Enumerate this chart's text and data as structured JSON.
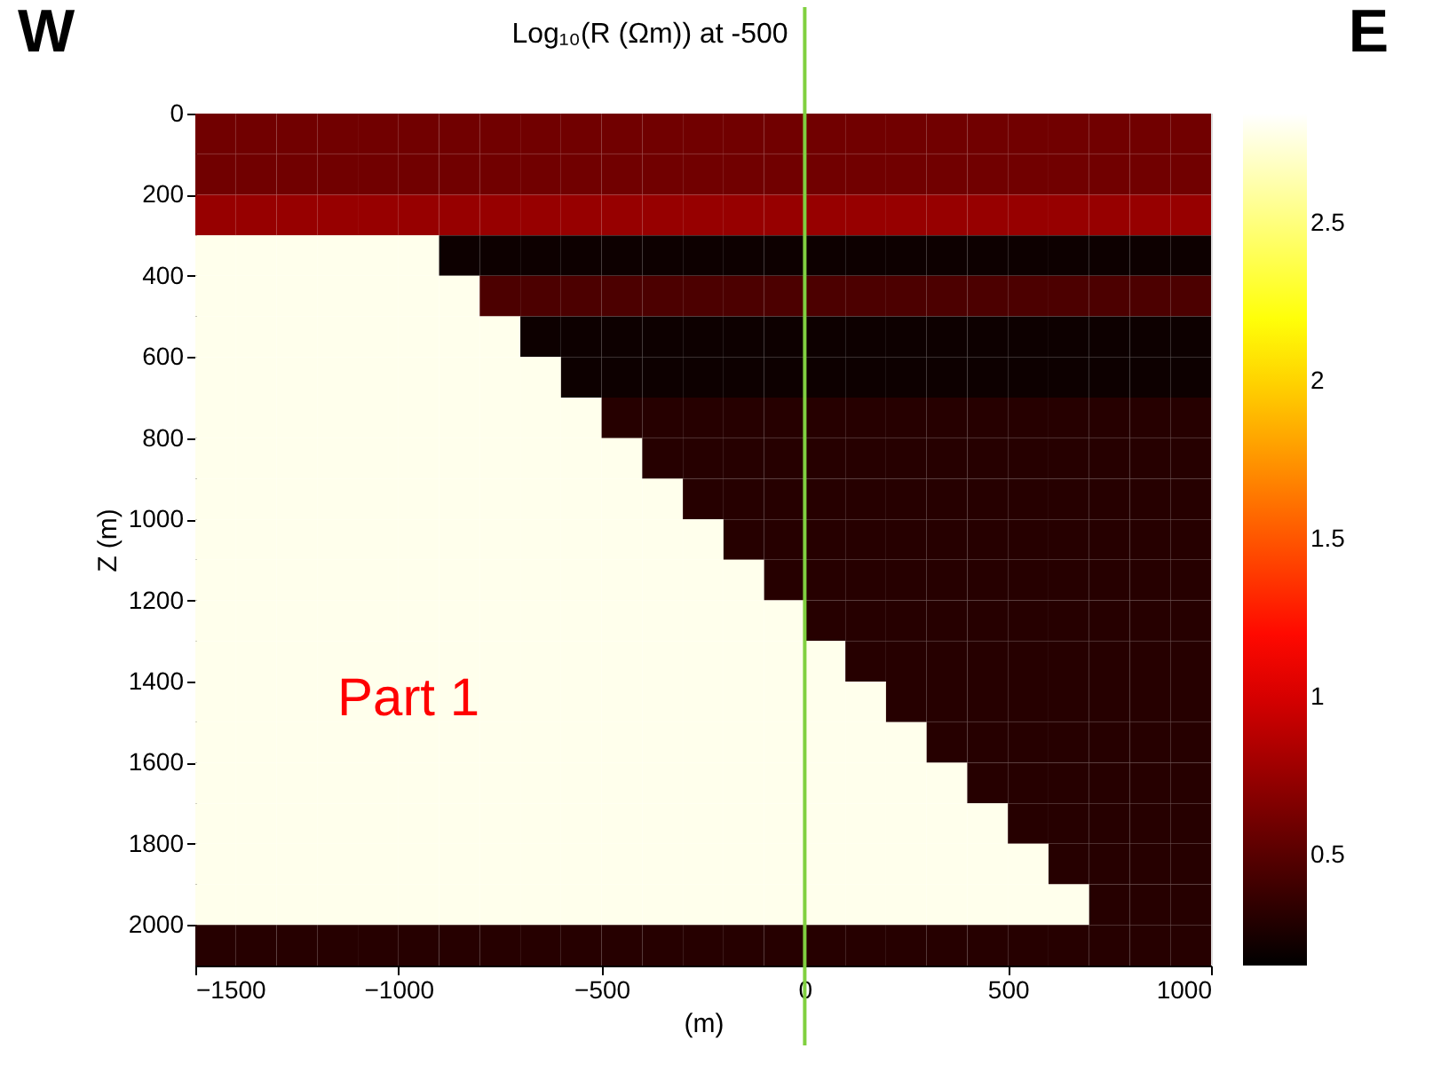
{
  "chart_data": {
    "type": "heatmap",
    "title": "Log₁₀(R (Ωm)) at    -500",
    "xlabel": "(m)",
    "ylabel": "Z (m)",
    "x": [
      -1450,
      -1350,
      -1250,
      -1150,
      -1050,
      -950,
      -850,
      -750,
      -650,
      -550,
      -450,
      -350,
      -250,
      -150,
      -50,
      50,
      150,
      250,
      350,
      450,
      550,
      650,
      750,
      850,
      950
    ],
    "y": [
      50,
      150,
      250,
      350,
      450,
      550,
      650,
      750,
      850,
      950,
      1050,
      1150,
      1250,
      1350,
      1450,
      1550,
      1650,
      1750,
      1850,
      1950,
      2050
    ],
    "cells": [
      [
        0.6,
        0.6,
        0.6,
        0.6,
        0.6,
        0.6,
        0.6,
        0.6,
        0.6,
        0.6,
        0.6,
        0.6,
        0.6,
        0.6,
        0.6,
        0.6,
        0.6,
        0.6,
        0.6,
        0.6,
        0.6,
        0.6,
        0.6,
        0.6,
        0.6
      ],
      [
        0.6,
        0.6,
        0.6,
        0.6,
        0.6,
        0.6,
        0.6,
        0.6,
        0.6,
        0.6,
        0.6,
        0.6,
        0.6,
        0.6,
        0.6,
        0.6,
        0.6,
        0.6,
        0.6,
        0.6,
        0.6,
        0.6,
        0.6,
        0.6,
        0.6
      ],
      [
        0.75,
        0.75,
        0.75,
        0.75,
        0.75,
        0.75,
        0.75,
        0.75,
        0.75,
        0.75,
        0.75,
        0.75,
        0.75,
        0.75,
        0.75,
        0.75,
        0.75,
        0.75,
        0.75,
        0.75,
        0.75,
        0.75,
        0.75,
        0.75,
        0.75
      ],
      [
        2.8,
        2.8,
        2.8,
        2.8,
        2.8,
        2.8,
        0.2,
        0.2,
        0.2,
        0.2,
        0.2,
        0.2,
        0.2,
        0.2,
        0.2,
        0.2,
        0.2,
        0.2,
        0.2,
        0.2,
        0.2,
        0.2,
        0.2,
        0.2,
        0.2
      ],
      [
        2.8,
        2.8,
        2.8,
        2.8,
        2.8,
        2.8,
        2.8,
        0.45,
        0.45,
        0.45,
        0.45,
        0.45,
        0.45,
        0.45,
        0.45,
        0.45,
        0.45,
        0.45,
        0.45,
        0.45,
        0.45,
        0.45,
        0.45,
        0.45,
        0.45
      ],
      [
        2.8,
        2.8,
        2.8,
        2.8,
        2.8,
        2.8,
        2.8,
        2.8,
        0.2,
        0.2,
        0.2,
        0.2,
        0.2,
        0.2,
        0.2,
        0.2,
        0.2,
        0.2,
        0.2,
        0.2,
        0.2,
        0.2,
        0.2,
        0.2,
        0.2
      ],
      [
        2.8,
        2.8,
        2.8,
        2.8,
        2.8,
        2.8,
        2.8,
        2.8,
        2.8,
        0.2,
        0.2,
        0.2,
        0.2,
        0.2,
        0.2,
        0.2,
        0.2,
        0.2,
        0.2,
        0.2,
        0.2,
        0.2,
        0.2,
        0.2,
        0.2
      ],
      [
        2.8,
        2.8,
        2.8,
        2.8,
        2.8,
        2.8,
        2.8,
        2.8,
        2.8,
        2.8,
        0.3,
        0.3,
        0.3,
        0.3,
        0.3,
        0.3,
        0.3,
        0.3,
        0.3,
        0.3,
        0.3,
        0.3,
        0.3,
        0.3,
        0.3
      ],
      [
        2.8,
        2.8,
        2.8,
        2.8,
        2.8,
        2.8,
        2.8,
        2.8,
        2.8,
        2.8,
        2.8,
        0.3,
        0.3,
        0.3,
        0.3,
        0.3,
        0.3,
        0.3,
        0.3,
        0.3,
        0.3,
        0.3,
        0.3,
        0.3,
        0.3
      ],
      [
        2.8,
        2.8,
        2.8,
        2.8,
        2.8,
        2.8,
        2.8,
        2.8,
        2.8,
        2.8,
        2.8,
        2.8,
        0.3,
        0.3,
        0.3,
        0.3,
        0.3,
        0.3,
        0.3,
        0.3,
        0.3,
        0.3,
        0.3,
        0.3,
        0.3
      ],
      [
        2.8,
        2.8,
        2.8,
        2.8,
        2.8,
        2.8,
        2.8,
        2.8,
        2.8,
        2.8,
        2.8,
        2.8,
        2.8,
        0.3,
        0.3,
        0.3,
        0.3,
        0.3,
        0.3,
        0.3,
        0.3,
        0.3,
        0.3,
        0.3,
        0.3
      ],
      [
        2.8,
        2.8,
        2.8,
        2.8,
        2.8,
        2.8,
        2.8,
        2.8,
        2.8,
        2.8,
        2.8,
        2.8,
        2.8,
        2.8,
        0.3,
        0.3,
        0.3,
        0.3,
        0.3,
        0.3,
        0.3,
        0.3,
        0.3,
        0.3,
        0.3
      ],
      [
        2.8,
        2.8,
        2.8,
        2.8,
        2.8,
        2.8,
        2.8,
        2.8,
        2.8,
        2.8,
        2.8,
        2.8,
        2.8,
        2.8,
        2.8,
        0.3,
        0.3,
        0.3,
        0.3,
        0.3,
        0.3,
        0.3,
        0.3,
        0.3,
        0.3
      ],
      [
        2.8,
        2.8,
        2.8,
        2.8,
        2.8,
        2.8,
        2.8,
        2.8,
        2.8,
        2.8,
        2.8,
        2.8,
        2.8,
        2.8,
        2.8,
        2.8,
        0.3,
        0.3,
        0.3,
        0.3,
        0.3,
        0.3,
        0.3,
        0.3,
        0.3
      ],
      [
        2.8,
        2.8,
        2.8,
        2.8,
        2.8,
        2.8,
        2.8,
        2.8,
        2.8,
        2.8,
        2.8,
        2.8,
        2.8,
        2.8,
        2.8,
        2.8,
        2.8,
        0.3,
        0.3,
        0.3,
        0.3,
        0.3,
        0.3,
        0.3,
        0.3
      ],
      [
        2.8,
        2.8,
        2.8,
        2.8,
        2.8,
        2.8,
        2.8,
        2.8,
        2.8,
        2.8,
        2.8,
        2.8,
        2.8,
        2.8,
        2.8,
        2.8,
        2.8,
        2.8,
        0.3,
        0.3,
        0.3,
        0.3,
        0.3,
        0.3,
        0.3
      ],
      [
        2.8,
        2.8,
        2.8,
        2.8,
        2.8,
        2.8,
        2.8,
        2.8,
        2.8,
        2.8,
        2.8,
        2.8,
        2.8,
        2.8,
        2.8,
        2.8,
        2.8,
        2.8,
        2.8,
        0.3,
        0.3,
        0.3,
        0.3,
        0.3,
        0.3
      ],
      [
        2.8,
        2.8,
        2.8,
        2.8,
        2.8,
        2.8,
        2.8,
        2.8,
        2.8,
        2.8,
        2.8,
        2.8,
        2.8,
        2.8,
        2.8,
        2.8,
        2.8,
        2.8,
        2.8,
        2.8,
        0.3,
        0.3,
        0.3,
        0.3,
        0.3
      ],
      [
        2.8,
        2.8,
        2.8,
        2.8,
        2.8,
        2.8,
        2.8,
        2.8,
        2.8,
        2.8,
        2.8,
        2.8,
        2.8,
        2.8,
        2.8,
        2.8,
        2.8,
        2.8,
        2.8,
        2.8,
        2.8,
        0.3,
        0.3,
        0.3,
        0.3
      ],
      [
        2.8,
        2.8,
        2.8,
        2.8,
        2.8,
        2.8,
        2.8,
        2.8,
        2.8,
        2.8,
        2.8,
        2.8,
        2.8,
        2.8,
        2.8,
        2.8,
        2.8,
        2.8,
        2.8,
        2.8,
        2.8,
        2.8,
        0.3,
        0.3,
        0.3
      ],
      [
        0.3,
        0.3,
        0.3,
        0.3,
        0.3,
        0.3,
        0.3,
        0.3,
        0.3,
        0.3,
        0.3,
        0.3,
        0.3,
        0.3,
        0.3,
        0.3,
        0.3,
        0.3,
        0.3,
        0.3,
        0.3,
        0.3,
        0.3,
        0.3,
        0.3
      ]
    ],
    "xlim": [
      -1500,
      1000
    ],
    "xticks": [
      -1500,
      -1000,
      -500,
      0,
      500,
      1000
    ],
    "ylim": [
      2100,
      0
    ],
    "yticks": [
      0,
      200,
      400,
      600,
      800,
      1000,
      1200,
      1400,
      1600,
      1800,
      2000
    ],
    "clim": [
      0.15,
      2.85
    ],
    "cticks": [
      0.5,
      1,
      1.5,
      2,
      2.5
    ],
    "ref_lines": [
      {
        "axis": "x",
        "value": 0,
        "color": "#80d040"
      }
    ],
    "annotations": [
      "W",
      "E",
      "Part 1"
    ]
  }
}
